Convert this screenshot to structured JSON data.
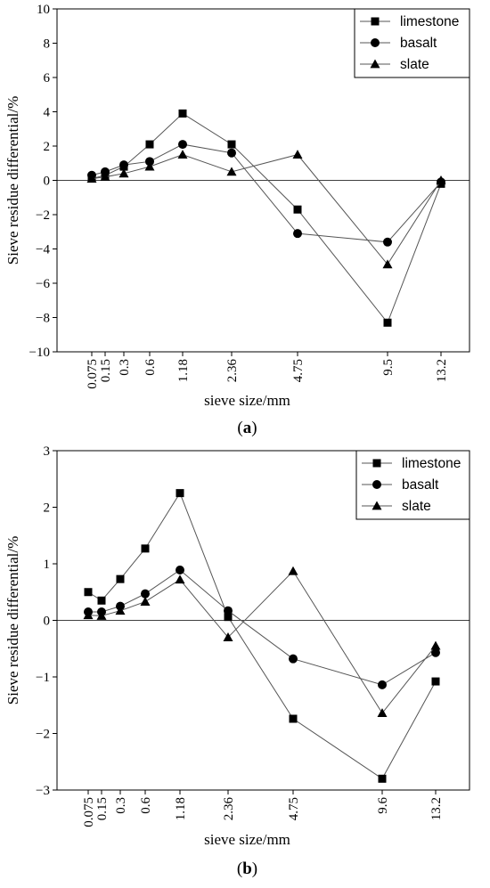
{
  "chart_data": [
    {
      "type": "line",
      "panel_label": {
        "open": "(",
        "letter": "a",
        "close": ")"
      },
      "xlabel": "sieve size/mm",
      "ylabel": "Sieve residue differential/%",
      "categories": [
        "0.075",
        "0.15",
        "0.3",
        "0.6",
        "1.18",
        "2.36",
        "4.75",
        "9.5",
        "13.2"
      ],
      "x": [
        0.075,
        0.15,
        0.3,
        0.6,
        1.18,
        2.36,
        4.75,
        9.5,
        13.2
      ],
      "ylim": [
        -10,
        10
      ],
      "yticks": [
        -10,
        -8,
        -6,
        -4,
        -2,
        0,
        2,
        4,
        6,
        8,
        10
      ],
      "legend_position": "top-right",
      "zero_line": true,
      "series": [
        {
          "name": "limestone",
          "marker": "square",
          "values": [
            0.1,
            0.3,
            0.8,
            2.1,
            3.9,
            2.1,
            -1.7,
            -8.3,
            -0.2
          ]
        },
        {
          "name": "basalt",
          "marker": "circle",
          "values": [
            0.3,
            0.5,
            0.9,
            1.1,
            2.1,
            1.6,
            -3.1,
            -3.6,
            -0.1
          ]
        },
        {
          "name": "slate",
          "marker": "triangle",
          "values": [
            0.1,
            0.2,
            0.4,
            0.8,
            1.5,
            0.5,
            1.5,
            -4.9,
            0.0
          ]
        }
      ]
    },
    {
      "type": "line",
      "panel_label": {
        "open": "(",
        "letter": "b",
        "close": ")"
      },
      "xlabel": "sieve size/mm",
      "ylabel": "Sieve residue differential/%",
      "categories": [
        "0.075",
        "0.15",
        "0.3",
        "0.6",
        "1.18",
        "2.36",
        "4.75",
        "9.6",
        "13.2"
      ],
      "x": [
        0.075,
        0.15,
        0.3,
        0.6,
        1.18,
        2.36,
        4.75,
        9.6,
        13.2
      ],
      "ylim": [
        -3,
        3
      ],
      "yticks": [
        -3,
        -2,
        -1,
        0,
        1,
        2,
        3
      ],
      "legend_position": "top-right",
      "zero_line": true,
      "series": [
        {
          "name": "limestone",
          "marker": "square",
          "values": [
            0.5,
            0.35,
            0.73,
            1.27,
            2.25,
            0.06,
            -1.74,
            -2.8,
            -1.08
          ]
        },
        {
          "name": "basalt",
          "marker": "circle",
          "values": [
            0.15,
            0.15,
            0.25,
            0.47,
            0.89,
            0.17,
            -0.68,
            -1.14,
            -0.57
          ]
        },
        {
          "name": "slate",
          "marker": "triangle",
          "values": [
            0.09,
            0.08,
            0.17,
            0.33,
            0.72,
            -0.3,
            0.87,
            -1.64,
            -0.45
          ]
        }
      ]
    }
  ]
}
